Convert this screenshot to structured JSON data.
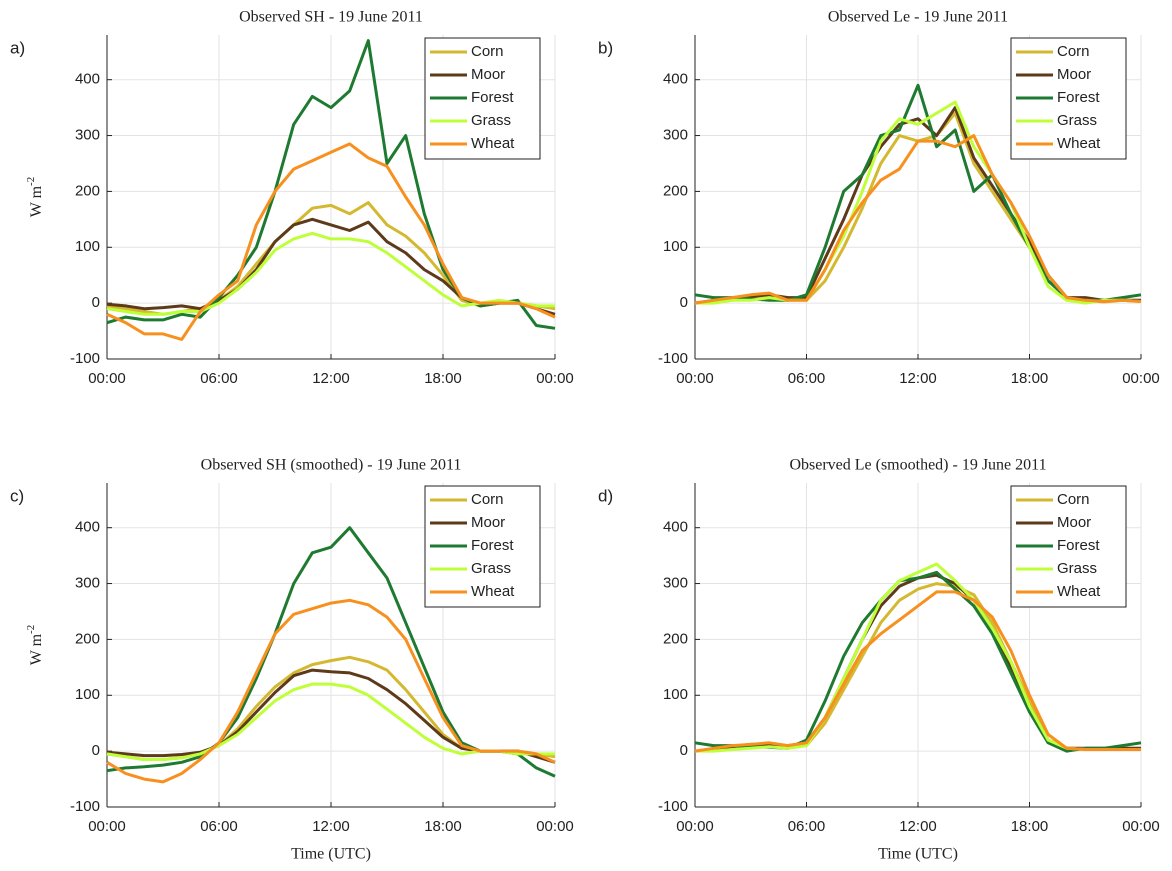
{
  "chart_data": [
    {
      "type": "line",
      "panel_label": "a)",
      "title": "Observed SH - 19 June 2011",
      "ylabel": "W m",
      "ylabel_sup": "-2",
      "x": [
        0,
        1,
        2,
        3,
        4,
        5,
        6,
        7,
        8,
        9,
        10,
        11,
        12,
        13,
        14,
        15,
        16,
        17,
        18,
        19,
        20,
        21,
        22,
        23,
        24
      ],
      "xlim": [
        0,
        24
      ],
      "xticks": [
        {
          "value": 0,
          "label": "00:00"
        },
        {
          "value": 6,
          "label": "06:00"
        },
        {
          "value": 12,
          "label": "12:00"
        },
        {
          "value": 18,
          "label": "18:00"
        },
        {
          "value": 24,
          "label": "00:00"
        }
      ],
      "ylim": [
        -100,
        480
      ],
      "yticks": [
        -100,
        0,
        100,
        200,
        300,
        400
      ],
      "grid": true,
      "series": [
        {
          "name": "Corn",
          "color": "#d4b830",
          "values": [
            -5,
            -10,
            -15,
            -20,
            -15,
            -10,
            5,
            30,
            70,
            110,
            140,
            170,
            175,
            160,
            180,
            140,
            120,
            90,
            50,
            5,
            -5,
            0,
            0,
            -5,
            -10
          ]
        },
        {
          "name": "Moor",
          "color": "#5c3a1a",
          "values": [
            -2,
            -5,
            -10,
            -8,
            -5,
            -10,
            5,
            25,
            60,
            110,
            140,
            150,
            140,
            130,
            145,
            110,
            90,
            60,
            40,
            10,
            -5,
            0,
            0,
            -10,
            -20
          ]
        },
        {
          "name": "Forest",
          "color": "#1e7a30",
          "values": [
            -35,
            -25,
            -30,
            -30,
            -20,
            -25,
            10,
            50,
            100,
            200,
            320,
            370,
            350,
            380,
            470,
            250,
            300,
            160,
            60,
            10,
            -5,
            0,
            5,
            -40,
            -45
          ]
        },
        {
          "name": "Grass",
          "color": "#bfff3a",
          "values": [
            -10,
            -15,
            -20,
            -20,
            -15,
            -15,
            0,
            25,
            55,
            95,
            115,
            125,
            115,
            115,
            110,
            90,
            65,
            40,
            15,
            -5,
            0,
            5,
            0,
            -5,
            -5
          ]
        },
        {
          "name": "Wheat",
          "color": "#f7901e",
          "values": [
            -20,
            -35,
            -55,
            -55,
            -65,
            -15,
            15,
            40,
            140,
            200,
            240,
            255,
            270,
            285,
            260,
            245,
            190,
            140,
            70,
            10,
            0,
            0,
            0,
            -10,
            -25
          ]
        }
      ]
    },
    {
      "type": "line",
      "panel_label": "b)",
      "title": "Observed Le - 19 June 2011",
      "x": [
        0,
        1,
        2,
        3,
        4,
        5,
        6,
        7,
        8,
        9,
        10,
        11,
        12,
        13,
        14,
        15,
        16,
        17,
        18,
        19,
        20,
        21,
        22,
        23,
        24
      ],
      "xlim": [
        0,
        24
      ],
      "xticks": [
        {
          "value": 0,
          "label": "00:00"
        },
        {
          "value": 6,
          "label": "06:00"
        },
        {
          "value": 12,
          "label": "12:00"
        },
        {
          "value": 18,
          "label": "18:00"
        },
        {
          "value": 24,
          "label": "00:00"
        }
      ],
      "ylim": [
        -100,
        480
      ],
      "yticks": [
        -100,
        0,
        100,
        200,
        300,
        400
      ],
      "grid": true,
      "series": [
        {
          "name": "Corn",
          "color": "#d4b830",
          "values": [
            0,
            2,
            5,
            8,
            10,
            8,
            5,
            40,
            100,
            170,
            250,
            300,
            290,
            300,
            340,
            250,
            200,
            150,
            100,
            50,
            10,
            5,
            2,
            5,
            3
          ]
        },
        {
          "name": "Moor",
          "color": "#5c3a1a",
          "values": [
            0,
            5,
            10,
            12,
            15,
            10,
            10,
            80,
            150,
            230,
            280,
            320,
            330,
            300,
            350,
            260,
            210,
            160,
            110,
            50,
            10,
            10,
            5,
            5,
            5
          ]
        },
        {
          "name": "Forest",
          "color": "#1e7a30",
          "values": [
            15,
            10,
            10,
            8,
            5,
            5,
            15,
            100,
            200,
            230,
            300,
            310,
            390,
            280,
            310,
            200,
            230,
            160,
            100,
            40,
            10,
            5,
            5,
            10,
            15
          ]
        },
        {
          "name": "Grass",
          "color": "#bfff3a",
          "values": [
            0,
            0,
            5,
            5,
            10,
            5,
            5,
            60,
            120,
            200,
            290,
            330,
            320,
            340,
            360,
            280,
            230,
            180,
            100,
            30,
            5,
            0,
            5,
            5,
            3
          ]
        },
        {
          "name": "Wheat",
          "color": "#f7901e",
          "values": [
            0,
            5,
            10,
            15,
            18,
            5,
            5,
            60,
            130,
            180,
            220,
            240,
            290,
            290,
            280,
            300,
            230,
            180,
            120,
            50,
            10,
            5,
            3,
            5,
            3
          ]
        }
      ]
    },
    {
      "type": "line",
      "panel_label": "c)",
      "title": "Observed SH (smoothed) - 19 June 2011",
      "ylabel": "W m",
      "ylabel_sup": "-2",
      "xlabel": "Time (UTC)",
      "x": [
        0,
        1,
        2,
        3,
        4,
        5,
        6,
        7,
        8,
        9,
        10,
        11,
        12,
        13,
        14,
        15,
        16,
        17,
        18,
        19,
        20,
        21,
        22,
        23,
        24
      ],
      "xlim": [
        0,
        24
      ],
      "xticks": [
        {
          "value": 0,
          "label": "00:00"
        },
        {
          "value": 6,
          "label": "06:00"
        },
        {
          "value": 12,
          "label": "12:00"
        },
        {
          "value": 18,
          "label": "18:00"
        },
        {
          "value": 24,
          "label": "00:00"
        }
      ],
      "ylim": [
        -100,
        480
      ],
      "yticks": [
        -100,
        0,
        100,
        200,
        300,
        400
      ],
      "grid": true,
      "series": [
        {
          "name": "Corn",
          "color": "#d4b830",
          "values": [
            -5,
            -10,
            -15,
            -15,
            -12,
            -5,
            10,
            40,
            80,
            115,
            140,
            155,
            162,
            168,
            160,
            145,
            110,
            70,
            30,
            5,
            0,
            0,
            0,
            -5,
            -10
          ]
        },
        {
          "name": "Moor",
          "color": "#5c3a1a",
          "values": [
            -2,
            -5,
            -8,
            -8,
            -6,
            -2,
            10,
            35,
            70,
            105,
            135,
            145,
            142,
            140,
            130,
            110,
            85,
            55,
            25,
            5,
            0,
            0,
            0,
            -10,
            -20
          ]
        },
        {
          "name": "Forest",
          "color": "#1e7a30",
          "values": [
            -35,
            -30,
            -28,
            -25,
            -20,
            -10,
            15,
            60,
            130,
            210,
            300,
            355,
            365,
            400,
            355,
            310,
            230,
            150,
            70,
            15,
            0,
            0,
            -5,
            -30,
            -45
          ]
        },
        {
          "name": "Grass",
          "color": "#bfff3a",
          "values": [
            -5,
            -10,
            -15,
            -15,
            -12,
            -5,
            10,
            30,
            60,
            90,
            110,
            120,
            120,
            115,
            100,
            75,
            50,
            25,
            5,
            -5,
            0,
            0,
            -5,
            -5,
            -5
          ]
        },
        {
          "name": "Wheat",
          "color": "#f7901e",
          "values": [
            -20,
            -40,
            -50,
            -55,
            -40,
            -15,
            15,
            70,
            140,
            210,
            245,
            255,
            265,
            270,
            262,
            240,
            200,
            130,
            60,
            10,
            0,
            0,
            0,
            -5,
            -20
          ]
        }
      ]
    },
    {
      "type": "line",
      "panel_label": "d)",
      "title": "Observed Le (smoothed) - 19 June 2011",
      "xlabel": "Time (UTC)",
      "x": [
        0,
        1,
        2,
        3,
        4,
        5,
        6,
        7,
        8,
        9,
        10,
        11,
        12,
        13,
        14,
        15,
        16,
        17,
        18,
        19,
        20,
        21,
        22,
        23,
        24
      ],
      "xlim": [
        0,
        24
      ],
      "xticks": [
        {
          "value": 0,
          "label": "00:00"
        },
        {
          "value": 6,
          "label": "06:00"
        },
        {
          "value": 12,
          "label": "12:00"
        },
        {
          "value": 18,
          "label": "18:00"
        },
        {
          "value": 24,
          "label": "00:00"
        }
      ],
      "ylim": [
        -100,
        480
      ],
      "yticks": [
        -100,
        0,
        100,
        200,
        300,
        400
      ],
      "grid": true,
      "series": [
        {
          "name": "Corn",
          "color": "#d4b830",
          "values": [
            0,
            2,
            5,
            8,
            10,
            8,
            10,
            50,
            110,
            170,
            230,
            270,
            290,
            300,
            295,
            280,
            230,
            160,
            90,
            30,
            5,
            3,
            3,
            3,
            3
          ]
        },
        {
          "name": "Moor",
          "color": "#5c3a1a",
          "values": [
            0,
            3,
            8,
            12,
            12,
            10,
            15,
            60,
            130,
            200,
            260,
            295,
            310,
            315,
            300,
            270,
            220,
            150,
            80,
            20,
            5,
            5,
            5,
            5,
            5
          ]
        },
        {
          "name": "Forest",
          "color": "#1e7a30",
          "values": [
            15,
            10,
            10,
            8,
            7,
            5,
            20,
            90,
            170,
            230,
            270,
            305,
            310,
            320,
            290,
            260,
            210,
            140,
            70,
            15,
            0,
            5,
            5,
            10,
            15
          ]
        },
        {
          "name": "Grass",
          "color": "#bfff3a",
          "values": [
            0,
            0,
            3,
            5,
            8,
            5,
            10,
            60,
            130,
            200,
            270,
            305,
            320,
            335,
            305,
            270,
            220,
            160,
            80,
            20,
            5,
            3,
            3,
            3,
            3
          ]
        },
        {
          "name": "Wheat",
          "color": "#f7901e",
          "values": [
            0,
            5,
            10,
            12,
            15,
            10,
            15,
            60,
            120,
            180,
            210,
            235,
            260,
            285,
            285,
            270,
            240,
            180,
            100,
            30,
            5,
            3,
            3,
            3,
            3
          ]
        }
      ]
    }
  ]
}
